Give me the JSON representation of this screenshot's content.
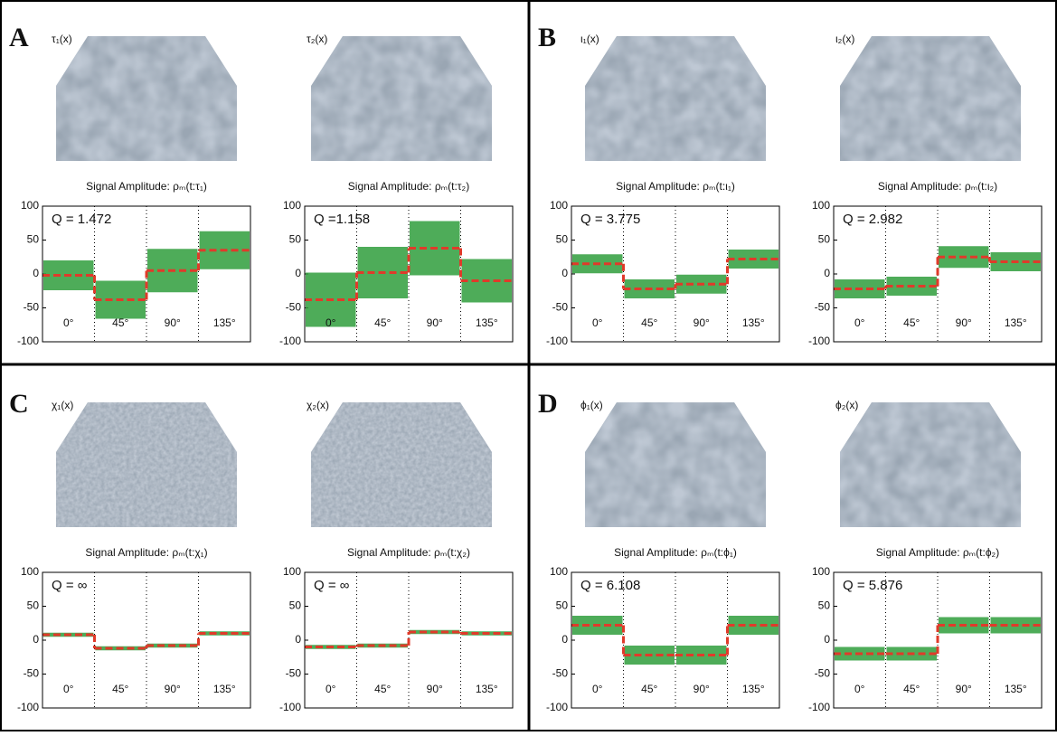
{
  "panels": [
    {
      "label": "A",
      "images": [
        "τ₁(x)",
        "τ₂(x)"
      ]
    },
    {
      "label": "B",
      "images": [
        "ι₁(x)",
        "ι₂(x)"
      ]
    },
    {
      "label": "C",
      "images": [
        "χ₁(x)",
        "χ₂(x)"
      ]
    },
    {
      "label": "D",
      "images": [
        "ϕ₁(x)",
        "ϕ₂(x)"
      ]
    }
  ],
  "chart_data": [
    {
      "type": "step-scatter",
      "title": "Signal Amplitude: ρₘ(t:τ₁)",
      "annotation": "Q = 1.472",
      "categories": [
        "0°",
        "45°",
        "90°",
        "135°"
      ],
      "values": [
        -2,
        -38,
        5,
        35
      ],
      "spread": [
        22,
        28,
        32,
        28
      ],
      "color": "#2f9e3c",
      "line_color": "#e03a2a",
      "ylim": [
        -100,
        100
      ],
      "yticks": [
        -100,
        -50,
        0,
        50,
        100
      ]
    },
    {
      "type": "step-scatter",
      "title": "Signal Amplitude: ρₘ(t:τ₂)",
      "annotation": "Q =1.158",
      "categories": [
        "0°",
        "45°",
        "90°",
        "135°"
      ],
      "values": [
        -38,
        2,
        38,
        -10
      ],
      "spread": [
        40,
        38,
        40,
        32
      ],
      "color": "#2f9e3c",
      "line_color": "#e03a2a",
      "ylim": [
        -100,
        100
      ],
      "yticks": [
        -100,
        -50,
        0,
        50,
        100
      ]
    },
    {
      "type": "step-scatter",
      "title": "Signal Amplitude: ρₘ(t:ι₁)",
      "annotation": "Q = 3.775",
      "categories": [
        "0°",
        "45°",
        "90°",
        "135°"
      ],
      "values": [
        15,
        -22,
        -15,
        22
      ],
      "spread": [
        14,
        14,
        14,
        14
      ],
      "color": "#2f9e3c",
      "line_color": "#e03a2a",
      "ylim": [
        -100,
        100
      ],
      "yticks": [
        -100,
        -50,
        0,
        50,
        100
      ]
    },
    {
      "type": "step-scatter",
      "title": "Signal Amplitude: ρₘ(t:ι₂)",
      "annotation": "Q = 2.982",
      "categories": [
        "0°",
        "45°",
        "90°",
        "135°"
      ],
      "values": [
        -22,
        -18,
        25,
        18
      ],
      "spread": [
        14,
        14,
        16,
        14
      ],
      "color": "#2f9e3c",
      "line_color": "#e03a2a",
      "ylim": [
        -100,
        100
      ],
      "yticks": [
        -100,
        -50,
        0,
        50,
        100
      ]
    },
    {
      "type": "step-scatter",
      "title": "Signal Amplitude: ρₘ(t:χ₁)",
      "annotation": "Q = ∞",
      "categories": [
        "0°",
        "45°",
        "90°",
        "135°"
      ],
      "values": [
        8,
        -12,
        -8,
        10
      ],
      "spread": [
        3,
        3,
        3,
        3
      ],
      "color": "#2f9e3c",
      "line_color": "#e03a2a",
      "ylim": [
        -100,
        100
      ],
      "yticks": [
        -100,
        -50,
        0,
        50,
        100
      ]
    },
    {
      "type": "step-scatter",
      "title": "Signal Amplitude: ρₘ(t:χ₂)",
      "annotation": "Q = ∞",
      "categories": [
        "0°",
        "45°",
        "90°",
        "135°"
      ],
      "values": [
        -10,
        -8,
        12,
        10
      ],
      "spread": [
        3,
        3,
        3,
        3
      ],
      "color": "#2f9e3c",
      "line_color": "#e03a2a",
      "ylim": [
        -100,
        100
      ],
      "yticks": [
        -100,
        -50,
        0,
        50,
        100
      ]
    },
    {
      "type": "step-scatter",
      "title": "Signal Amplitude: ρₘ(t:ϕ₁)",
      "annotation": "Q = 6.108",
      "categories": [
        "0°",
        "45°",
        "90°",
        "135°"
      ],
      "values": [
        22,
        -22,
        -22,
        22
      ],
      "spread": [
        14,
        14,
        14,
        14
      ],
      "color": "#2f9e3c",
      "line_color": "#e03a2a",
      "ylim": [
        -100,
        100
      ],
      "yticks": [
        -100,
        -50,
        0,
        50,
        100
      ]
    },
    {
      "type": "step-scatter",
      "title": "Signal Amplitude: ρₘ(t:ϕ₂)",
      "annotation": "Q = 5.876",
      "categories": [
        "0°",
        "45°",
        "90°",
        "135°"
      ],
      "values": [
        -20,
        -20,
        22,
        22
      ],
      "spread": [
        10,
        10,
        12,
        12
      ],
      "color": "#2f9e3c",
      "line_color": "#e03a2a",
      "ylim": [
        -100,
        100
      ],
      "yticks": [
        -100,
        -50,
        0,
        50,
        100
      ]
    }
  ]
}
